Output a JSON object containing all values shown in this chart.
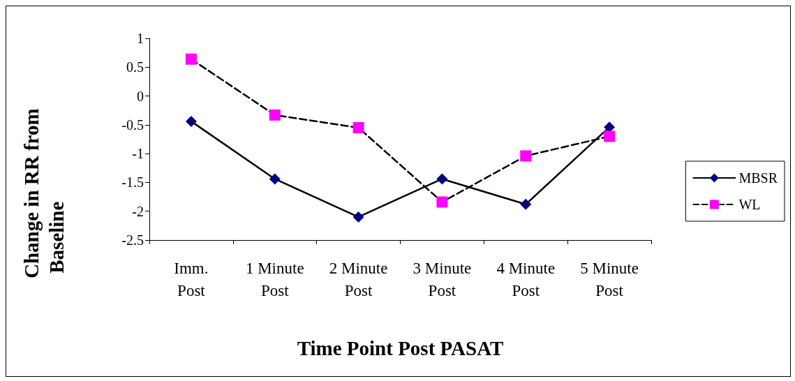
{
  "chart_data": {
    "type": "line",
    "xlabel": "Time Point Post PASAT",
    "ylabel": "Change in RR from Baseline",
    "categories": [
      "Imm. Post",
      "1 Minute Post",
      "2 Minute Post",
      "3 Minute Post",
      "4 Minute Post",
      "5 Minute Post"
    ],
    "series": [
      {
        "name": "MBSR",
        "color": "#000080",
        "values": [
          -0.44,
          -1.44,
          -2.1,
          -1.44,
          -1.88,
          -0.54
        ],
        "marker": "diamond",
        "line_style": "solid"
      },
      {
        "name": "WL",
        "color": "#ff00ff",
        "values": [
          0.64,
          -0.33,
          -0.55,
          -1.84,
          -1.04,
          -0.7
        ],
        "marker": "square",
        "line_style": "dashed"
      }
    ],
    "ylim": [
      -2.5,
      1
    ],
    "yticks": [
      -2.5,
      -2,
      -1.5,
      -1,
      -0.5,
      0,
      0.5,
      1
    ],
    "grid": false,
    "legend": "right"
  }
}
